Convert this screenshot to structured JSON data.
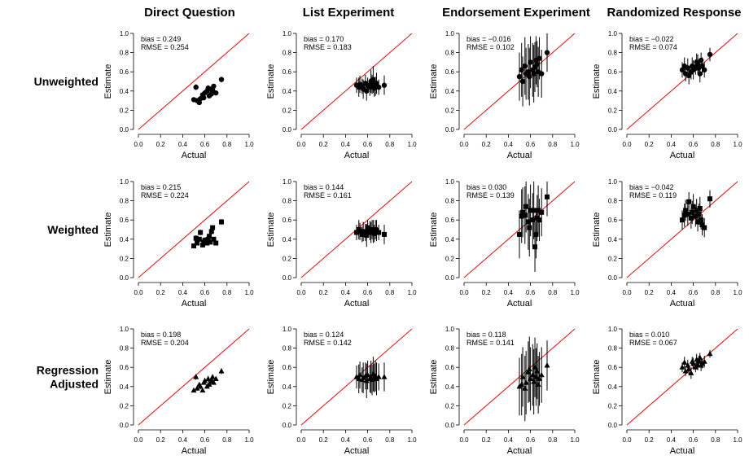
{
  "columns": [
    "Direct Question",
    "List Experiment",
    "Endorsement Experiment",
    "Randomized Response"
  ],
  "rows": [
    [
      "Unweighted"
    ],
    [
      "Weighted"
    ],
    [
      "Regression",
      "Adjusted"
    ]
  ],
  "chart_data": {
    "type": "scatter",
    "layout": "grid",
    "xlabel": "Actual",
    "ylabel": "Estimate",
    "xlim": [
      0,
      1
    ],
    "ylim": [
      0,
      1
    ],
    "xticks": [
      "0.0",
      "0.2",
      "0.4",
      "0.6",
      "0.8",
      "1.0"
    ],
    "yticks": [
      "0.0",
      "0.2",
      "0.4",
      "0.6",
      "0.8",
      "1.0"
    ],
    "reference_line": "y = x",
    "colors": {
      "reference_line": "#e31a1c",
      "points": "#000000",
      "error_bars": "#000000"
    },
    "markers_by_row": [
      "circle",
      "square",
      "triangle"
    ],
    "actual_values": [
      0.5,
      0.52,
      0.53,
      0.55,
      0.56,
      0.58,
      0.59,
      0.6,
      0.62,
      0.63,
      0.64,
      0.65,
      0.66,
      0.67,
      0.68,
      0.7,
      0.75
    ],
    "panels": [
      [
        {
          "bias": "0.249",
          "rmse": "0.254",
          "estimates": [
            0.31,
            0.44,
            0.3,
            0.28,
            0.32,
            0.36,
            0.33,
            0.38,
            0.4,
            0.43,
            0.35,
            0.42,
            0.37,
            0.41,
            0.45,
            0.38,
            0.52
          ],
          "errors": [
            0.02,
            0.03,
            0.02,
            0.02,
            0.02,
            0.03,
            0.02,
            0.03,
            0.02,
            0.03,
            0.02,
            0.02,
            0.03,
            0.02,
            0.02,
            0.02,
            0.03
          ]
        },
        {
          "bias": "0.170",
          "rmse": "0.183",
          "estimates": [
            0.46,
            0.44,
            0.47,
            0.45,
            0.42,
            0.48,
            0.4,
            0.46,
            0.44,
            0.5,
            0.47,
            0.52,
            0.43,
            0.45,
            0.48,
            0.44,
            0.46
          ],
          "errors": [
            0.08,
            0.1,
            0.09,
            0.08,
            0.1,
            0.09,
            0.1,
            0.08,
            0.09,
            0.12,
            0.1,
            0.14,
            0.09,
            0.1,
            0.11,
            0.08,
            0.1
          ]
        },
        {
          "bias": "−0.016",
          "rmse": "0.102",
          "estimates": [
            0.55,
            0.62,
            0.5,
            0.66,
            0.58,
            0.6,
            0.55,
            0.7,
            0.62,
            0.58,
            0.65,
            0.72,
            0.68,
            0.6,
            0.74,
            0.58,
            0.8
          ],
          "errors": [
            0.25,
            0.28,
            0.26,
            0.3,
            0.27,
            0.29,
            0.3,
            0.27,
            0.28,
            0.3,
            0.26,
            0.25,
            0.24,
            0.26,
            0.22,
            0.25,
            0.2
          ]
        },
        {
          "bias": "−0.022",
          "rmse": "0.074",
          "estimates": [
            0.62,
            0.66,
            0.58,
            0.64,
            0.56,
            0.6,
            0.66,
            0.62,
            0.65,
            0.7,
            0.68,
            0.64,
            0.58,
            0.72,
            0.66,
            0.62,
            0.78
          ],
          "errors": [
            0.08,
            0.09,
            0.08,
            0.1,
            0.09,
            0.08,
            0.09,
            0.1,
            0.08,
            0.09,
            0.1,
            0.08,
            0.09,
            0.08,
            0.09,
            0.08,
            0.07
          ]
        }
      ],
      [
        {
          "bias": "0.215",
          "rmse": "0.224",
          "estimates": [
            0.33,
            0.41,
            0.36,
            0.4,
            0.47,
            0.34,
            0.37,
            0.39,
            0.36,
            0.4,
            0.43,
            0.37,
            0.48,
            0.52,
            0.4,
            0.36,
            0.58
          ],
          "errors": [
            0.02,
            0.03,
            0.02,
            0.02,
            0.03,
            0.02,
            0.02,
            0.03,
            0.02,
            0.03,
            0.02,
            0.02,
            0.03,
            0.02,
            0.02,
            0.02,
            0.03
          ]
        },
        {
          "bias": "0.144",
          "rmse": "0.161",
          "estimates": [
            0.47,
            0.5,
            0.48,
            0.45,
            0.48,
            0.47,
            0.44,
            0.52,
            0.49,
            0.47,
            0.5,
            0.48,
            0.46,
            0.5,
            0.49,
            0.47,
            0.45
          ],
          "errors": [
            0.08,
            0.1,
            0.09,
            0.08,
            0.1,
            0.09,
            0.12,
            0.08,
            0.1,
            0.11,
            0.1,
            0.12,
            0.09,
            0.1,
            0.11,
            0.08,
            0.1
          ]
        },
        {
          "bias": "0.030",
          "rmse": "0.139",
          "estimates": [
            0.45,
            0.64,
            0.68,
            0.65,
            0.74,
            0.58,
            0.52,
            0.7,
            0.6,
            0.7,
            0.32,
            0.45,
            0.62,
            0.7,
            0.6,
            0.68,
            0.84
          ],
          "errors": [
            0.25,
            0.28,
            0.26,
            0.3,
            0.27,
            0.29,
            0.3,
            0.27,
            0.28,
            0.3,
            0.26,
            0.25,
            0.24,
            0.26,
            0.22,
            0.25,
            0.2
          ]
        },
        {
          "bias": "−0.042",
          "rmse": "0.119",
          "estimates": [
            0.6,
            0.65,
            0.7,
            0.66,
            0.79,
            0.62,
            0.68,
            0.74,
            0.64,
            0.7,
            0.58,
            0.66,
            0.72,
            0.6,
            0.55,
            0.52,
            0.82
          ],
          "errors": [
            0.1,
            0.12,
            0.11,
            0.12,
            0.1,
            0.11,
            0.12,
            0.13,
            0.11,
            0.12,
            0.1,
            0.11,
            0.12,
            0.1,
            0.11,
            0.1,
            0.09
          ]
        }
      ],
      [
        {
          "bias": "0.198",
          "rmse": "0.204",
          "estimates": [
            0.36,
            0.5,
            0.38,
            0.42,
            0.4,
            0.36,
            0.44,
            0.46,
            0.4,
            0.48,
            0.42,
            0.45,
            0.47,
            0.5,
            0.44,
            0.48,
            0.56
          ],
          "errors": [
            0.02,
            0.03,
            0.02,
            0.02,
            0.03,
            0.02,
            0.02,
            0.03,
            0.02,
            0.03,
            0.02,
            0.02,
            0.03,
            0.02,
            0.02,
            0.02,
            0.03
          ]
        },
        {
          "bias": "0.124",
          "rmse": "0.142",
          "estimates": [
            0.5,
            0.48,
            0.52,
            0.47,
            0.49,
            0.51,
            0.46,
            0.52,
            0.48,
            0.5,
            0.47,
            0.53,
            0.49,
            0.51,
            0.48,
            0.5,
            0.5
          ],
          "errors": [
            0.12,
            0.15,
            0.14,
            0.13,
            0.16,
            0.14,
            0.18,
            0.15,
            0.14,
            0.17,
            0.16,
            0.18,
            0.15,
            0.16,
            0.17,
            0.14,
            0.15
          ]
        },
        {
          "bias": "0.118",
          "rmse": "0.141",
          "estimates": [
            0.4,
            0.42,
            0.5,
            0.38,
            0.44,
            0.55,
            0.58,
            0.48,
            0.52,
            0.45,
            0.6,
            0.5,
            0.56,
            0.42,
            0.48,
            0.52,
            0.62
          ],
          "errors": [
            0.3,
            0.32,
            0.31,
            0.34,
            0.33,
            0.32,
            0.34,
            0.33,
            0.32,
            0.34,
            0.31,
            0.3,
            0.29,
            0.3,
            0.28,
            0.29,
            0.26
          ]
        },
        {
          "bias": "0.010",
          "rmse": "0.067",
          "estimates": [
            0.6,
            0.65,
            0.56,
            0.62,
            0.58,
            0.54,
            0.66,
            0.64,
            0.6,
            0.68,
            0.62,
            0.66,
            0.7,
            0.62,
            0.64,
            0.66,
            0.74
          ],
          "errors": [
            0.05,
            0.06,
            0.05,
            0.06,
            0.05,
            0.06,
            0.05,
            0.06,
            0.05,
            0.06,
            0.05,
            0.06,
            0.05,
            0.06,
            0.05,
            0.06,
            0.04
          ]
        }
      ]
    ]
  }
}
